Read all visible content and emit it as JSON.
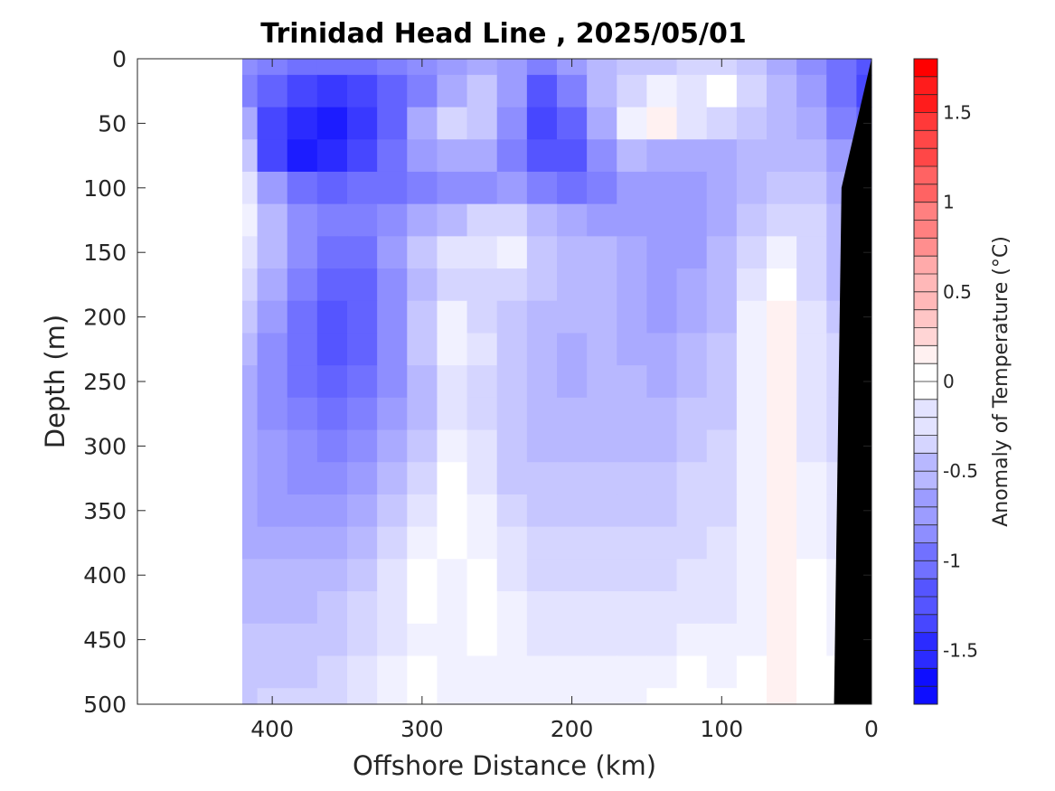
{
  "chart_data": {
    "type": "heatmap",
    "title": "Trinidad Head Line , 2025/05/01",
    "xlabel": "Offshore Distance (km)",
    "ylabel": "Depth (m)",
    "xlim": [
      490,
      0
    ],
    "ylim": [
      0,
      500
    ],
    "x_reversed": true,
    "y_reversed": true,
    "xticks": [
      "400",
      "300",
      "200",
      "100",
      "0"
    ],
    "xtick_values": [
      400,
      300,
      200,
      100,
      0
    ],
    "yticks": [
      "0",
      "50",
      "100",
      "150",
      "200",
      "250",
      "300",
      "350",
      "400",
      "450",
      "500"
    ],
    "ytick_values": [
      0,
      50,
      100,
      150,
      200,
      250,
      300,
      350,
      400,
      450,
      500
    ],
    "data_extent_km": 420,
    "colorbar": {
      "label": "Anomaly of Temperature (°C)",
      "range": [
        -1.8,
        1.8
      ],
      "ticks": [
        "1.5",
        "1",
        "0.5",
        "0",
        "-0.5",
        "-1",
        "-1.5"
      ],
      "tick_values": [
        1.5,
        1,
        0.5,
        0,
        -0.5,
        -1,
        -1.5
      ],
      "levels": 36,
      "cold_color": "#0000ff",
      "warm_color": "#ff0000",
      "zero_color": "#ffffff"
    },
    "x": [
      420,
      400,
      380,
      360,
      340,
      320,
      300,
      280,
      260,
      240,
      220,
      200,
      180,
      160,
      140,
      120,
      100,
      80,
      60,
      40,
      20,
      0
    ],
    "y": [
      0,
      25,
      50,
      75,
      100,
      125,
      150,
      175,
      200,
      225,
      250,
      275,
      300,
      325,
      350,
      375,
      400,
      425,
      450,
      475,
      500
    ],
    "z": [
      [
        -0.8,
        -0.9,
        -1.0,
        -1.0,
        -1.0,
        -0.9,
        -0.8,
        -0.7,
        -0.6,
        -0.7,
        -0.9,
        -0.7,
        -0.5,
        -0.4,
        -0.4,
        -0.3,
        -0.3,
        -0.4,
        -0.6,
        -0.8,
        -1.0,
        -1.2
      ],
      [
        -0.9,
        -1.1,
        -1.3,
        -1.4,
        -1.3,
        -1.1,
        -0.9,
        -0.6,
        -0.4,
        -0.7,
        -1.2,
        -0.9,
        -0.5,
        -0.3,
        -0.1,
        -0.2,
        0.0,
        -0.3,
        -0.5,
        -0.7,
        -1.0,
        -1.3
      ],
      [
        -0.6,
        -1.3,
        -1.5,
        -1.6,
        -1.4,
        -1.1,
        -0.6,
        -0.3,
        -0.4,
        -0.8,
        -1.3,
        -1.1,
        -0.6,
        -0.1,
        0.1,
        -0.2,
        -0.3,
        -0.4,
        -0.5,
        -0.6,
        -0.9,
        -1.1
      ],
      [
        -0.4,
        -1.3,
        -1.6,
        -1.5,
        -1.3,
        -1.0,
        -0.7,
        -0.6,
        -0.6,
        -0.9,
        -1.2,
        -1.2,
        -0.8,
        -0.5,
        -0.6,
        -0.6,
        -0.6,
        -0.5,
        -0.5,
        -0.5,
        -0.7,
        -0.9
      ],
      [
        -0.2,
        -0.7,
        -1.0,
        -1.1,
        -1.0,
        -1.0,
        -0.9,
        -0.8,
        -0.8,
        -0.7,
        -0.9,
        -1.0,
        -0.9,
        -0.7,
        -0.7,
        -0.7,
        -0.6,
        -0.5,
        -0.4,
        -0.4,
        -0.6,
        -0.8
      ],
      [
        -0.1,
        -0.5,
        -0.8,
        -0.9,
        -0.9,
        -0.8,
        -0.6,
        -0.5,
        -0.3,
        -0.3,
        -0.5,
        -0.6,
        -0.7,
        -0.7,
        -0.7,
        -0.7,
        -0.6,
        -0.4,
        -0.3,
        -0.3,
        -0.5,
        -0.7
      ],
      [
        -0.2,
        -0.5,
        -0.8,
        -1.0,
        -1.0,
        -0.7,
        -0.4,
        -0.2,
        -0.2,
        -0.1,
        -0.4,
        -0.5,
        -0.5,
        -0.6,
        -0.7,
        -0.7,
        -0.5,
        -0.3,
        -0.1,
        -0.3,
        -0.5,
        -0.6
      ],
      [
        -0.3,
        -0.6,
        -0.9,
        -1.1,
        -1.1,
        -0.8,
        -0.5,
        -0.3,
        -0.3,
        -0.3,
        -0.4,
        -0.5,
        -0.5,
        -0.6,
        -0.7,
        -0.6,
        -0.5,
        -0.2,
        0.0,
        -0.3,
        -0.5,
        -0.6
      ],
      [
        -0.4,
        -0.7,
        -1.0,
        -1.2,
        -1.1,
        -0.8,
        -0.4,
        -0.1,
        -0.3,
        -0.4,
        -0.5,
        -0.5,
        -0.5,
        -0.6,
        -0.7,
        -0.6,
        -0.5,
        -0.1,
        0.1,
        -0.2,
        -0.4,
        -0.5
      ],
      [
        -0.5,
        -0.8,
        -1.0,
        -1.2,
        -1.1,
        -0.8,
        -0.4,
        -0.1,
        -0.2,
        -0.4,
        -0.5,
        -0.6,
        -0.5,
        -0.6,
        -0.6,
        -0.5,
        -0.4,
        -0.1,
        0.1,
        -0.2,
        -0.3,
        -0.4
      ],
      [
        -0.6,
        -0.8,
        -1.0,
        -1.1,
        -1.0,
        -0.8,
        -0.5,
        -0.2,
        -0.3,
        -0.4,
        -0.5,
        -0.6,
        -0.5,
        -0.5,
        -0.6,
        -0.5,
        -0.4,
        -0.1,
        0.1,
        -0.2,
        -0.3,
        -0.4
      ],
      [
        -0.6,
        -0.8,
        -0.9,
        -1.0,
        -0.9,
        -0.7,
        -0.5,
        -0.2,
        -0.3,
        -0.4,
        -0.5,
        -0.5,
        -0.5,
        -0.5,
        -0.5,
        -0.4,
        -0.4,
        -0.1,
        0.1,
        -0.2,
        -0.3,
        -0.4
      ],
      [
        -0.6,
        -0.7,
        -0.8,
        -0.9,
        -0.8,
        -0.6,
        -0.4,
        -0.1,
        -0.2,
        -0.4,
        -0.5,
        -0.5,
        -0.5,
        -0.5,
        -0.5,
        -0.4,
        -0.3,
        -0.1,
        0.1,
        -0.2,
        -0.3,
        -0.3
      ],
      [
        -0.6,
        -0.7,
        -0.8,
        -0.8,
        -0.7,
        -0.5,
        -0.3,
        0.0,
        -0.2,
        -0.4,
        -0.4,
        -0.4,
        -0.4,
        -0.4,
        -0.4,
        -0.3,
        -0.3,
        -0.1,
        0.1,
        -0.1,
        -0.2,
        -0.3
      ],
      [
        -0.6,
        -0.7,
        -0.7,
        -0.7,
        -0.6,
        -0.4,
        -0.2,
        0.0,
        -0.1,
        -0.3,
        -0.4,
        -0.4,
        -0.4,
        -0.4,
        -0.4,
        -0.3,
        -0.3,
        -0.1,
        0.1,
        -0.1,
        -0.2,
        -0.3
      ],
      [
        -0.6,
        -0.6,
        -0.6,
        -0.6,
        -0.5,
        -0.3,
        -0.1,
        0.0,
        -0.1,
        -0.2,
        -0.3,
        -0.3,
        -0.3,
        -0.3,
        -0.3,
        -0.3,
        -0.2,
        -0.1,
        0.1,
        -0.1,
        -0.2,
        -0.2
      ],
      [
        -0.5,
        -0.5,
        -0.5,
        -0.5,
        -0.4,
        -0.2,
        0.0,
        -0.1,
        0.0,
        -0.2,
        -0.3,
        -0.3,
        -0.3,
        -0.3,
        -0.3,
        -0.2,
        -0.2,
        -0.1,
        0.1,
        0.0,
        -0.1,
        -0.2
      ],
      [
        -0.5,
        -0.5,
        -0.5,
        -0.4,
        -0.3,
        -0.2,
        0.0,
        -0.1,
        0.0,
        -0.1,
        -0.2,
        -0.2,
        -0.2,
        -0.2,
        -0.2,
        -0.2,
        -0.2,
        -0.1,
        0.1,
        0.0,
        -0.1,
        -0.2
      ],
      [
        -0.4,
        -0.4,
        -0.4,
        -0.4,
        -0.3,
        -0.2,
        -0.1,
        -0.1,
        0.0,
        -0.1,
        -0.2,
        -0.2,
        -0.2,
        -0.2,
        -0.2,
        -0.1,
        -0.1,
        -0.1,
        0.1,
        0.0,
        -0.1,
        -0.1
      ],
      [
        -0.4,
        -0.4,
        -0.4,
        -0.3,
        -0.2,
        -0.1,
        0.0,
        -0.1,
        -0.1,
        -0.1,
        -0.1,
        -0.1,
        -0.1,
        -0.1,
        -0.1,
        0.0,
        -0.1,
        0.0,
        0.1,
        0.0,
        0.0,
        -0.1
      ],
      [
        -0.4,
        -0.3,
        -0.3,
        -0.3,
        -0.2,
        -0.1,
        0.0,
        -0.1,
        -0.1,
        -0.1,
        -0.1,
        -0.1,
        -0.1,
        -0.1,
        0.0,
        0.0,
        0.0,
        0.0,
        0.1,
        0.0,
        0.0,
        -0.1
      ]
    ],
    "bathymetry_km": [
      [
        0,
        0
      ],
      [
        20,
        100
      ],
      [
        25,
        500
      ]
    ],
    "bathymetry_color": "#000000"
  }
}
